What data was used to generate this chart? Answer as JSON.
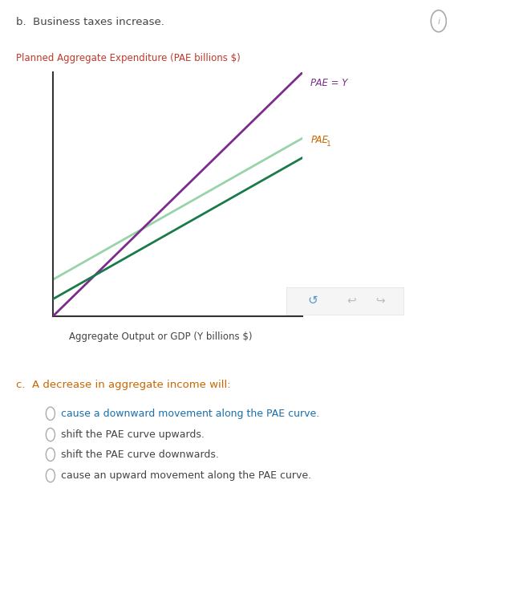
{
  "title_b": "b.  Business taxes increase.",
  "ylabel": "Planned Aggregate Expenditure (PAE billions $)",
  "xlabel": "Aggregate Output or GDP (Y billions $)",
  "pae_eq_y_color": "#7B2D8B",
  "pae1_old_color": "#98D4A8",
  "pae1_new_color": "#1A7A4A",
  "pae_eq_y_label": "PAE = Y",
  "pae1_label": "PAE",
  "pae1_subscript": "1",
  "line_pae_old_start": 1.5,
  "line_pae_old_slope": 0.58,
  "line_pae_new_start": 0.7,
  "line_pae_new_slope": 0.58,
  "xrange": [
    0,
    10
  ],
  "yrange": [
    0,
    10
  ],
  "grid_color": "#CCCCCC",
  "bg_color": "#FFFFFF",
  "title_b_color": "#444444",
  "pae_label_color": "#CC6600",
  "pae_eq_y_label_color": "#7B2D8B",
  "ylabel_color": "#C0392B",
  "xlabel_color": "#444444",
  "question_c_text": "c.  A decrease in aggregate income will:",
  "question_c_color": "#CC6600",
  "option1": "cause a downward movement along the PAE curve.",
  "option2": "shift the PAE curve upwards.",
  "option3": "shift the PAE curve downwards.",
  "option4": "cause an upward movement along the PAE curve.",
  "option1_color": "#1A6FAD",
  "option_default_color": "#444444",
  "radio_color": "#AAAAAA",
  "info_icon_color": "#AAAAAA"
}
